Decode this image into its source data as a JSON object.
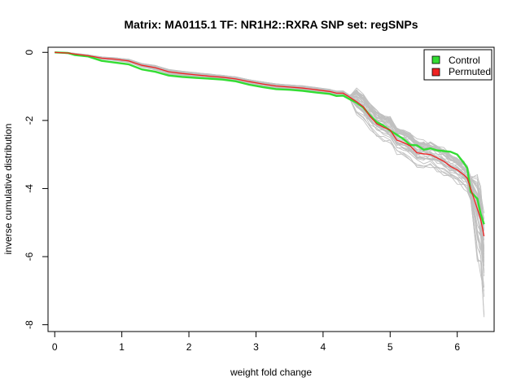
{
  "chart_data": {
    "type": "line",
    "title": "Matrix: MA0115.1 TF: NR1H2::RXRA SNP set: regSNPs",
    "xlabel": "weight fold change",
    "ylabel": "inverse cumulative distribution",
    "xlim": [
      -0.1,
      6.55
    ],
    "ylim": [
      -8.2,
      0.15
    ],
    "x_ticks": [
      "0",
      "1",
      "2",
      "3",
      "4",
      "5",
      "6"
    ],
    "y_ticks": [
      "0",
      "-2",
      "-4",
      "-6",
      "-8"
    ],
    "x_tick_values": [
      0,
      1,
      2,
      3,
      4,
      5,
      6
    ],
    "y_tick_values": [
      0,
      -2,
      -4,
      -6,
      -8
    ],
    "legend": {
      "position": "top-right",
      "entries": [
        {
          "label": "Control",
          "color": "#33dd33"
        },
        {
          "label": "Permuted",
          "color": "#ee2222"
        }
      ]
    },
    "background_series_color": "#c0c0c0",
    "background_series_count": 40,
    "series": [
      {
        "name": "Control",
        "color": "#33dd33",
        "x": [
          0.0,
          0.2,
          0.3,
          0.5,
          0.7,
          0.9,
          1.1,
          1.3,
          1.5,
          1.7,
          1.9,
          2.1,
          2.3,
          2.5,
          2.7,
          2.9,
          3.1,
          3.3,
          3.5,
          3.7,
          3.9,
          4.1,
          4.2,
          4.3,
          4.4,
          4.5,
          4.6,
          4.7,
          4.8,
          4.9,
          5.0,
          5.1,
          5.2,
          5.3,
          5.4,
          5.5,
          5.6,
          5.7,
          5.8,
          5.9,
          6.0,
          6.1,
          6.15,
          6.2,
          6.3,
          6.35,
          6.4
        ],
        "y": [
          0.0,
          -0.02,
          -0.08,
          -0.12,
          -0.25,
          -0.3,
          -0.35,
          -0.5,
          -0.57,
          -0.68,
          -0.72,
          -0.75,
          -0.77,
          -0.8,
          -0.85,
          -0.95,
          -1.02,
          -1.08,
          -1.1,
          -1.13,
          -1.18,
          -1.22,
          -1.28,
          -1.27,
          -1.38,
          -1.48,
          -1.62,
          -1.85,
          -2.05,
          -2.15,
          -2.3,
          -2.42,
          -2.55,
          -2.72,
          -2.73,
          -2.86,
          -2.82,
          -2.88,
          -2.9,
          -2.92,
          -3.0,
          -3.25,
          -3.4,
          -4.1,
          -4.3,
          -4.75,
          -5.05
        ]
      },
      {
        "name": "Permuted",
        "color": "#ee2222",
        "x": [
          0.0,
          0.2,
          0.3,
          0.5,
          0.7,
          0.9,
          1.1,
          1.3,
          1.5,
          1.7,
          1.9,
          2.1,
          2.3,
          2.5,
          2.7,
          2.9,
          3.1,
          3.3,
          3.5,
          3.7,
          3.9,
          4.1,
          4.2,
          4.3,
          4.4,
          4.5,
          4.6,
          4.7,
          4.8,
          4.9,
          5.0,
          5.1,
          5.2,
          5.3,
          5.4,
          5.5,
          5.6,
          5.7,
          5.8,
          5.9,
          6.0,
          6.1,
          6.15,
          6.2,
          6.3,
          6.35,
          6.4
        ],
        "y": [
          0.0,
          -0.02,
          -0.05,
          -0.1,
          -0.17,
          -0.2,
          -0.25,
          -0.38,
          -0.45,
          -0.57,
          -0.62,
          -0.66,
          -0.7,
          -0.73,
          -0.78,
          -0.86,
          -0.93,
          -0.99,
          -1.02,
          -1.05,
          -1.1,
          -1.15,
          -1.2,
          -1.2,
          -1.32,
          -1.45,
          -1.6,
          -1.88,
          -2.1,
          -2.2,
          -2.28,
          -2.58,
          -2.65,
          -2.75,
          -2.95,
          -2.98,
          -3.0,
          -3.1,
          -3.2,
          -3.35,
          -3.45,
          -3.6,
          -3.7,
          -4.0,
          -4.6,
          -4.9,
          -5.4
        ]
      }
    ]
  }
}
